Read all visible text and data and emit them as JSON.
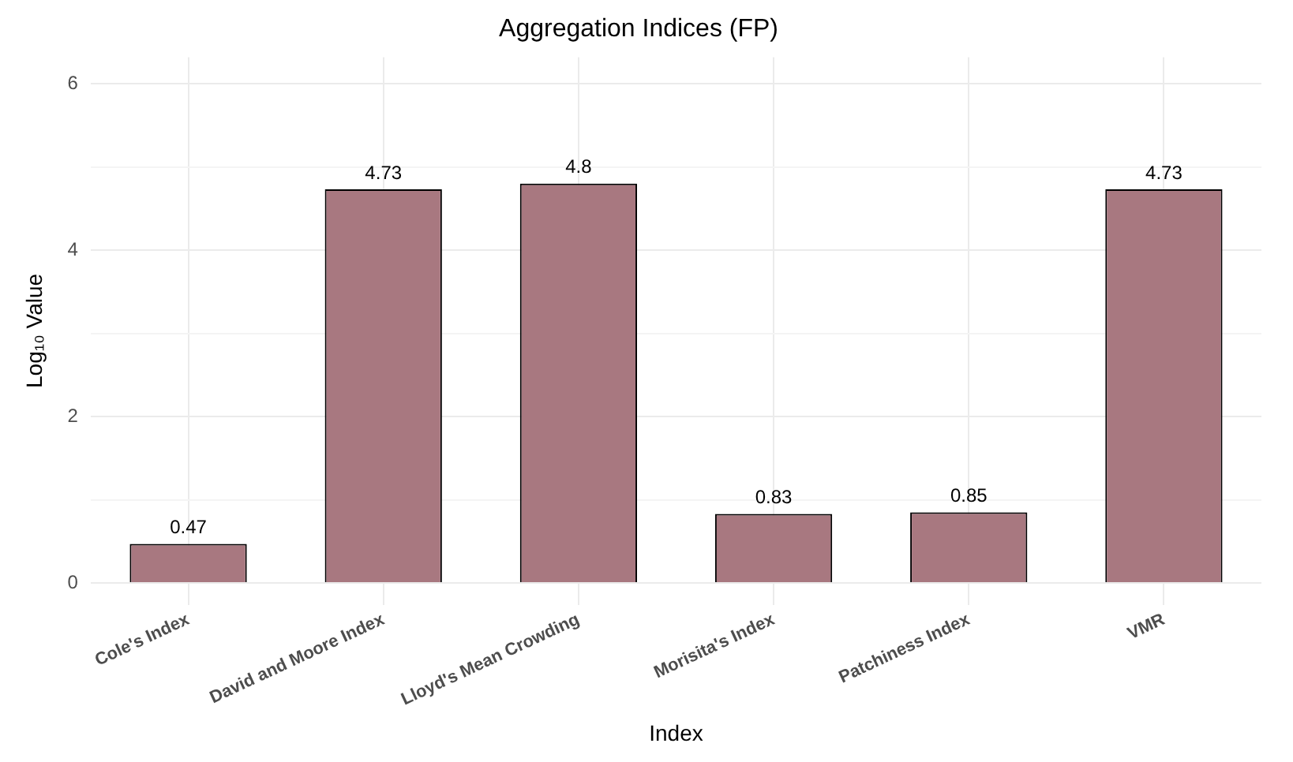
{
  "chart_data": {
    "type": "bar",
    "title": "Aggregation Indices (FP)",
    "xlabel": "Index",
    "ylabel": "Log₁₀ Value",
    "categories": [
      "Cole's Index",
      "David and Moore Index",
      "Lloyd's Mean Crowding",
      "Morisita's Index",
      "Patchiness Index",
      "VMR"
    ],
    "values": [
      0.47,
      4.73,
      4.8,
      0.83,
      0.85,
      4.73
    ],
    "color": "#a87880",
    "ylim": [
      -0.26,
      6.32
    ],
    "yticks": [
      0,
      {
        "value": 1,
        "label": null
      },
      2,
      {
        "value": 3,
        "label": null
      },
      4,
      {
        "value": 5,
        "label": null
      },
      6
    ],
    "grid": true,
    "data_labels": true
  }
}
